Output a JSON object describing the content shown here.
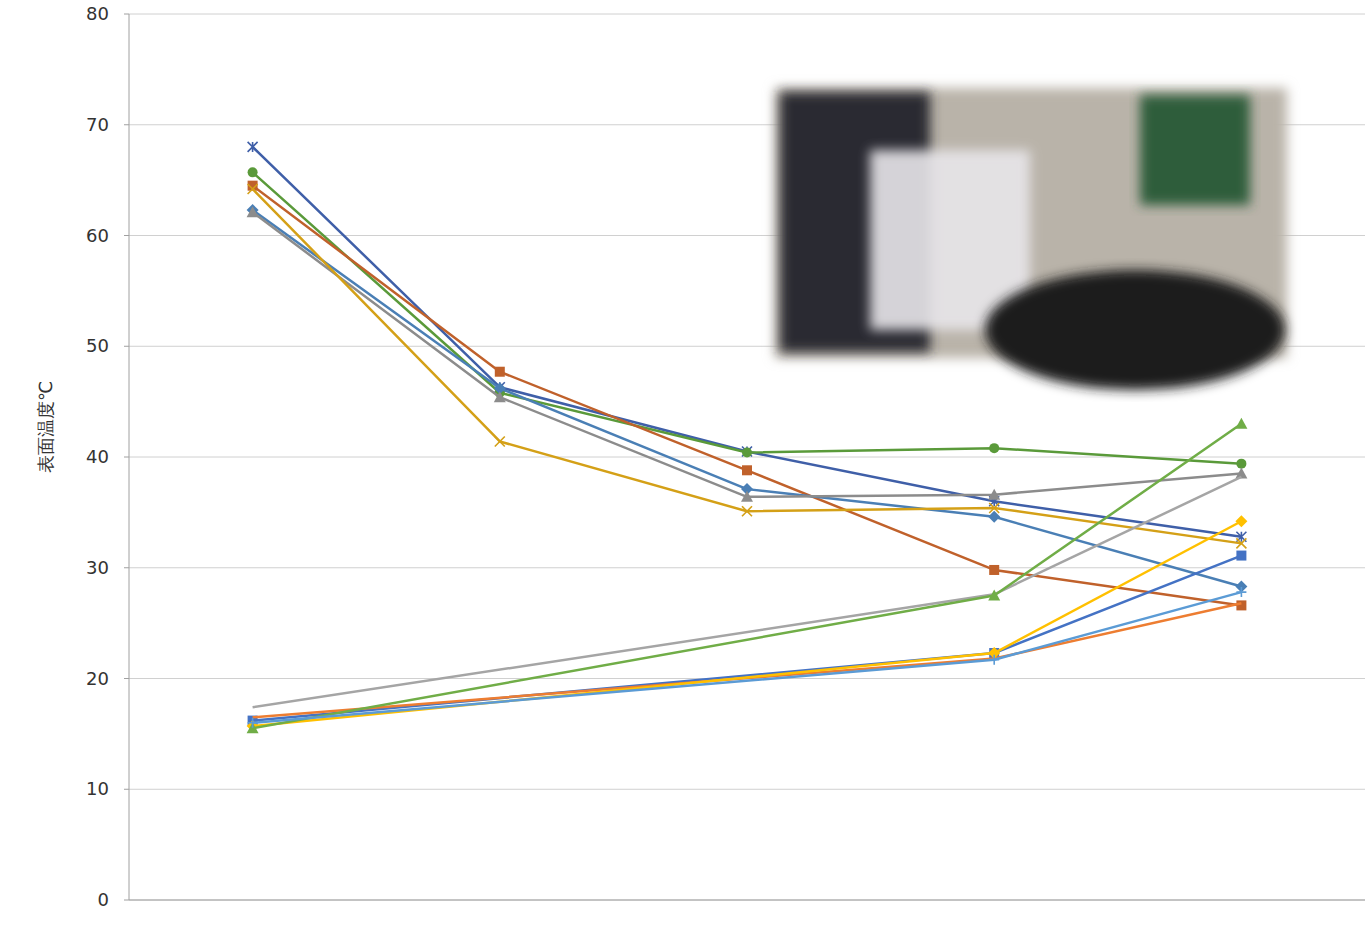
{
  "chart_data": {
    "type": "line",
    "y_label": "表面温度℃",
    "xlim": [
      -0.5,
      4.5
    ],
    "ylim": [
      0,
      80
    ],
    "yticks": [
      0,
      10,
      20,
      30,
      40,
      50,
      60,
      70,
      80
    ],
    "grid": true,
    "tick_labels": "y",
    "series": [
      {
        "color": "#3f5fa8",
        "marker": "star",
        "x": [
          0,
          1,
          2,
          3,
          4
        ],
        "values": [
          68,
          46.3,
          40.5,
          36,
          32.8
        ]
      },
      {
        "color": "#5a9a3a",
        "marker": "circle",
        "x": [
          0,
          1,
          2,
          3,
          4
        ],
        "values": [
          65.7,
          45.8,
          40.4,
          40.8,
          39.4
        ]
      },
      {
        "color": "#c0612b",
        "marker": "square",
        "x": [
          0,
          1,
          2,
          3,
          4
        ],
        "values": [
          64.5,
          47.7,
          38.8,
          29.8,
          26.6
        ]
      },
      {
        "color": "#4a7fb5",
        "marker": "diamond",
        "x": [
          0,
          1,
          2,
          3,
          4
        ],
        "values": [
          62.3,
          46.2,
          37.1,
          34.6,
          28.3
        ]
      },
      {
        "color": "#8c8c8c",
        "marker": "triangle",
        "x": [
          0,
          1,
          2,
          3,
          4
        ],
        "values": [
          62.1,
          45.4,
          36.4,
          36.6,
          38.5
        ]
      },
      {
        "color": "#d4a017",
        "marker": "x",
        "x": [
          0,
          1,
          2,
          3,
          4
        ],
        "values": [
          64.2,
          41.4,
          35.1,
          35.4,
          32.2
        ]
      },
      {
        "color": "#4472c4",
        "marker": "square",
        "x": [
          0,
          3,
          4
        ],
        "values": [
          16.2,
          22.3,
          31.1
        ]
      },
      {
        "color": "#ed7d31",
        "marker": "none",
        "x": [
          0,
          3,
          4
        ],
        "values": [
          16.5,
          21.8,
          26.8
        ]
      },
      {
        "color": "#a5a5a5",
        "marker": "none",
        "x": [
          0,
          3,
          4
        ],
        "values": [
          17.4,
          27.6,
          38.2
        ]
      },
      {
        "color": "#ffc000",
        "marker": "diamond",
        "x": [
          0,
          3,
          4
        ],
        "values": [
          15.7,
          22.3,
          34.2
        ]
      },
      {
        "color": "#70ad47",
        "marker": "triangle",
        "x": [
          0,
          3,
          4
        ],
        "values": [
          15.5,
          27.5,
          43
        ]
      },
      {
        "color": "#5b9bd5",
        "marker": "plus",
        "x": [
          0,
          3,
          4
        ],
        "values": [
          16,
          21.7,
          27.8
        ]
      }
    ]
  }
}
